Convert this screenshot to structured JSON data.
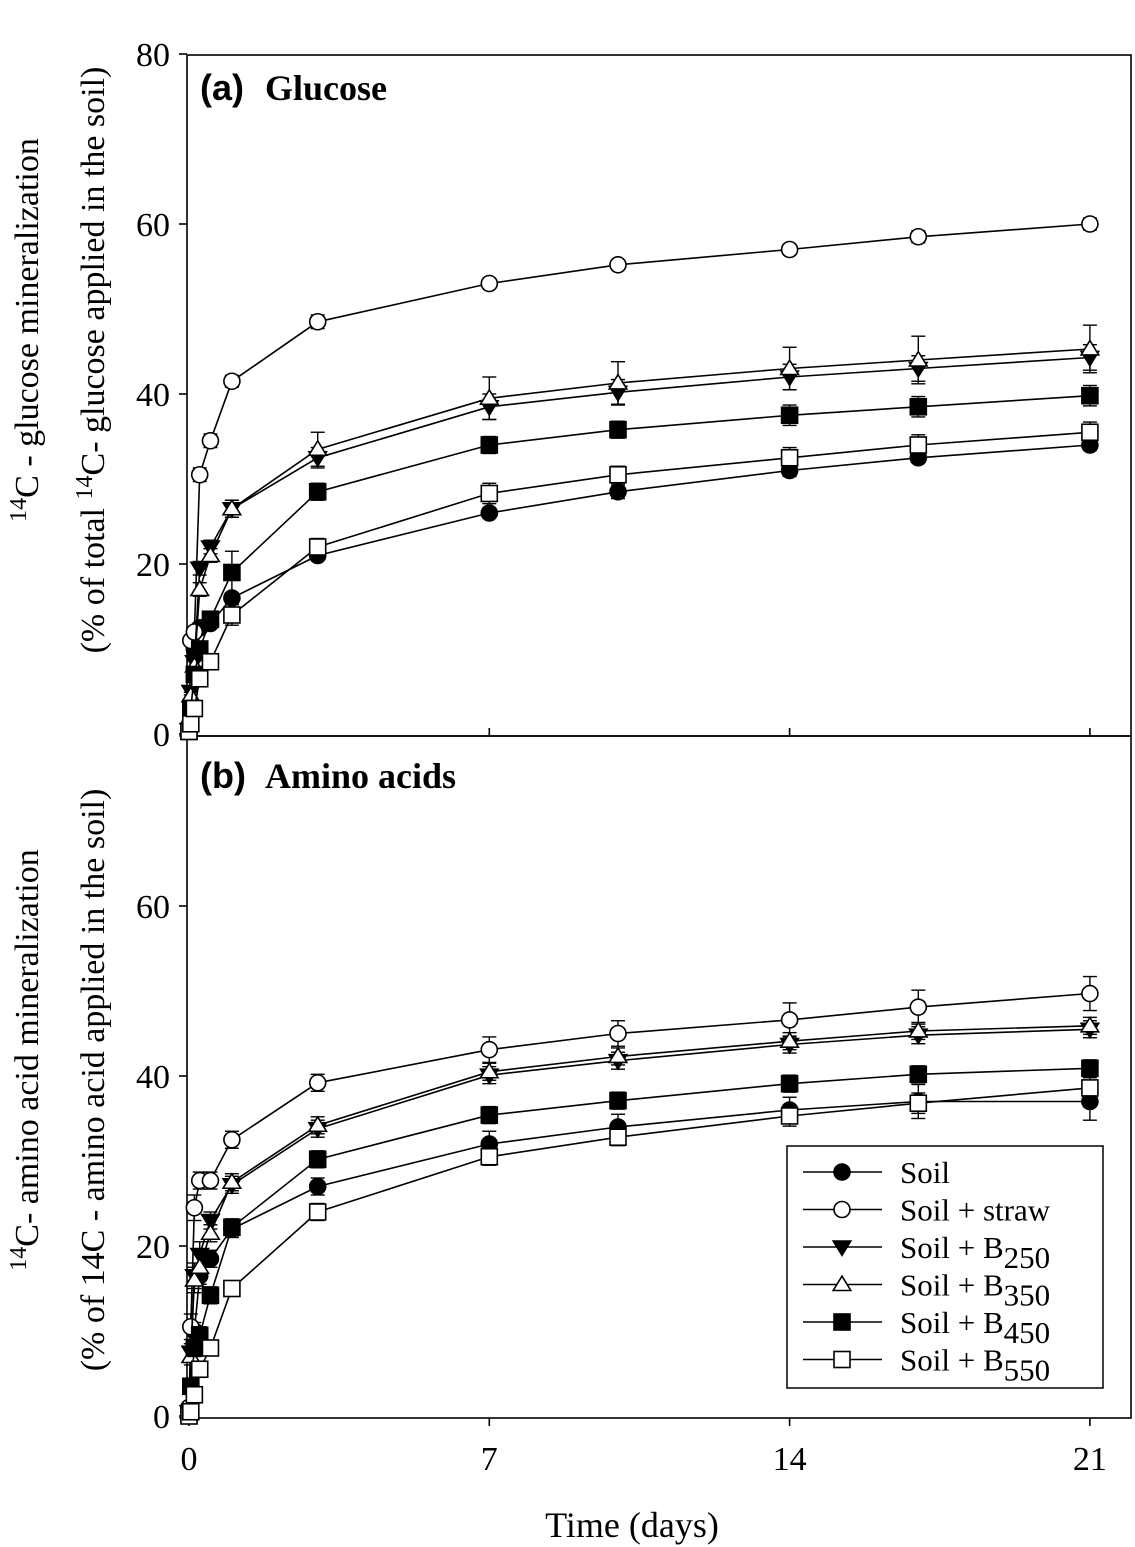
{
  "chart_data": [
    {
      "type": "line",
      "panel_label": "(a)",
      "title": "Glucose",
      "ylabel_line1": {
        "sup": "14",
        "main": "C - glucose mineralization",
        "sup2": "",
        "tail": ""
      },
      "ylabel_line2": {
        "pre": "(% of total ",
        "sup": "14",
        "tail": "C- glucose applied in the soil)"
      },
      "ylim": [
        0,
        80
      ],
      "yticks": [
        "0",
        "20",
        "40",
        "60",
        "80"
      ],
      "x": [
        0,
        0.042,
        0.125,
        0.25,
        0.5,
        1,
        3,
        7,
        10,
        14,
        17,
        21
      ],
      "series": [
        {
          "name": "Soil",
          "marker": "circle-filled",
          "values": [
            0.5,
            3.5,
            10,
            12.5,
            13,
            16,
            21,
            26,
            28.5,
            31,
            32.5,
            34
          ],
          "errors": [
            0.2,
            0.3,
            0.5,
            0.5,
            0.5,
            0.6,
            0.5,
            0.5,
            0.8,
            0.7,
            0.6,
            0.6
          ]
        },
        {
          "name": "Soil + straw",
          "marker": "circle-open",
          "values": [
            1,
            11,
            12,
            30.5,
            34.5,
            41.5,
            48.5,
            53,
            55.2,
            57,
            58.5,
            60
          ],
          "errors": [
            0.3,
            0.5,
            0.5,
            0.8,
            0.8,
            0.7,
            0.8,
            0.5,
            0.5,
            0.6,
            0.7,
            0.7
          ]
        },
        {
          "name": "Soil + B250",
          "marker": "triangle-down-filled",
          "values": [
            0.5,
            5,
            8.5,
            19.5,
            22,
            26.5,
            32.5,
            38.5,
            40.2,
            42,
            43,
            44.3
          ],
          "errors": [
            0.2,
            0.4,
            0.6,
            0.8,
            0.8,
            1.0,
            1.2,
            1.5,
            1.5,
            1.5,
            1.5,
            1.5
          ]
        },
        {
          "name": "Soil + B350",
          "marker": "triangle-up-open",
          "values": [
            0.5,
            4.5,
            8,
            17,
            21,
            26.5,
            33.5,
            39.5,
            41.3,
            43,
            44,
            45.3
          ],
          "errors": [
            0.2,
            0.4,
            0.6,
            0.8,
            0.8,
            1.0,
            2.0,
            2.5,
            2.5,
            2.5,
            2.8,
            2.8
          ]
        },
        {
          "name": "Soil + B450",
          "marker": "square-filled",
          "values": [
            0.3,
            3,
            7,
            10,
            13.5,
            19,
            28.5,
            34,
            35.8,
            37.5,
            38.5,
            39.8
          ],
          "errors": [
            0.2,
            0.3,
            0.5,
            0.6,
            0.8,
            2.5,
            1.0,
            1.0,
            1.0,
            1.2,
            1.2,
            1.2
          ]
        },
        {
          "name": "Soil + B550",
          "marker": "square-open",
          "values": [
            0.3,
            1.2,
            3,
            6.5,
            8.5,
            14,
            22,
            28.3,
            30.5,
            32.5,
            34,
            35.5
          ],
          "errors": [
            0.2,
            0.3,
            0.5,
            0.6,
            0.8,
            1.2,
            1.0,
            1.2,
            1.0,
            1.2,
            1.2,
            1.2
          ]
        }
      ]
    },
    {
      "type": "line",
      "panel_label": "(b)",
      "title": "Amino acids",
      "ylabel_line1": {
        "sup": "14",
        "main": "C- amino acid mineralization",
        "sup2": "",
        "tail": ""
      },
      "ylabel_line2": {
        "pre": "(% of 14C - amino acid applied in the soil)",
        "sup": "",
        "tail": ""
      },
      "ylim": [
        0,
        80
      ],
      "yticks": [
        "0",
        "20",
        "40",
        "60"
      ],
      "xlabel": "Time (days)",
      "xticks": [
        "0",
        "7",
        "14",
        "21"
      ],
      "xlim": [
        0,
        21.5
      ],
      "x": [
        0,
        0.042,
        0.125,
        0.25,
        0.5,
        1,
        3,
        7,
        10,
        14,
        17,
        21
      ],
      "series": [
        {
          "name": "Soil",
          "marker": "circle-filled",
          "values": [
            1,
            3.5,
            10,
            16.5,
            18.5,
            22,
            27,
            32,
            34,
            36,
            37,
            37
          ],
          "errors": [
            0.2,
            0.3,
            1.0,
            1.0,
            1.0,
            1.0,
            1.0,
            1.5,
            1.5,
            1.5,
            2.0,
            2.2
          ]
        },
        {
          "name": "Soil + straw",
          "marker": "circle-open",
          "values": [
            1,
            10.5,
            24.5,
            27.7,
            27.7,
            32.5,
            39.2,
            43.1,
            45,
            46.6,
            48.1,
            49.7
          ],
          "errors": [
            0.3,
            1.5,
            1.5,
            1.0,
            1.0,
            1.0,
            1.0,
            1.5,
            1.5,
            2.0,
            2.0,
            2.0
          ]
        },
        {
          "name": "Soil + B250",
          "marker": "triangle-down-filled",
          "values": [
            0.5,
            7.5,
            16.5,
            19,
            23,
            27.2,
            33.8,
            40.1,
            41.8,
            43.7,
            44.8,
            45.5
          ],
          "errors": [
            0.3,
            1.0,
            1.5,
            1.5,
            1.0,
            1.0,
            1.0,
            1.0,
            1.0,
            1.0,
            1.0,
            1.0
          ]
        },
        {
          "name": "Soil + B350",
          "marker": "triangle-up-open",
          "values": [
            0.5,
            7,
            16,
            17.5,
            21.5,
            27.5,
            34.2,
            40.5,
            42.3,
            44.1,
            45.3,
            45.9
          ],
          "errors": [
            0.3,
            1.0,
            1.5,
            1.5,
            1.0,
            1.0,
            1.0,
            1.0,
            1.0,
            1.0,
            1.0,
            1.0
          ]
        },
        {
          "name": "Soil + B450",
          "marker": "square-filled",
          "values": [
            0.3,
            3.5,
            8,
            9.5,
            14.2,
            22.2,
            30.2,
            35.4,
            37.1,
            39.1,
            40.2,
            40.9
          ],
          "errors": [
            0.2,
            0.5,
            1.0,
            1.0,
            1.0,
            1.0,
            1.0,
            1.0,
            1.0,
            1.0,
            1.0,
            1.0
          ]
        },
        {
          "name": "Soil + B550",
          "marker": "square-open",
          "values": [
            0,
            0.5,
            2.5,
            5.5,
            8,
            15,
            24,
            30.5,
            32.8,
            35.3,
            36.8,
            38.6
          ],
          "errors": [
            0.2,
            0.3,
            0.5,
            0.5,
            0.5,
            0.8,
            1.0,
            1.0,
            1.0,
            1.2,
            1.2,
            1.2
          ]
        }
      ],
      "legend": {
        "placement": "bottom-right",
        "items": [
          {
            "marker": "circle-filled",
            "text": "Soil",
            "sub": ""
          },
          {
            "marker": "circle-open",
            "text": "Soil + straw",
            "sub": ""
          },
          {
            "marker": "triangle-down-filled",
            "text": "Soil + B",
            "sub": "250"
          },
          {
            "marker": "triangle-up-open",
            "text": "Soil + B",
            "sub": "350"
          },
          {
            "marker": "square-filled",
            "text": "Soil + B",
            "sub": "450"
          },
          {
            "marker": "square-open",
            "text": "Soil + B",
            "sub": "550"
          }
        ]
      }
    }
  ]
}
